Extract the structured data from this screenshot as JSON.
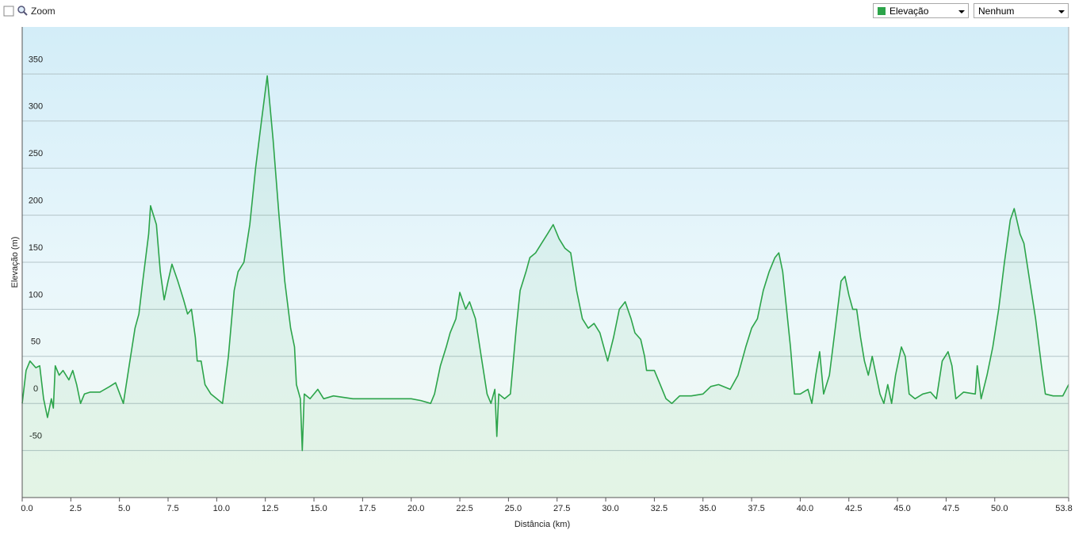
{
  "toolbar": {
    "zoom_label": "Zoom",
    "secondary_select": "Nenhum"
  },
  "chart_data": {
    "type": "line",
    "xlabel": "Distância  (km)",
    "ylabel": "Elevação (m)",
    "xlim": [
      0,
      53.8
    ],
    "ylim": [
      -100,
      400
    ],
    "xticks": [
      {
        "value": 0,
        "label": "0.0"
      },
      2.5,
      {
        "value": 5,
        "label": "5.0"
      },
      7.5,
      {
        "value": 10,
        "label": "10.0"
      },
      12.5,
      {
        "value": 15,
        "label": "15.0"
      },
      17.5,
      {
        "value": 20,
        "label": "20.0"
      },
      22.5,
      {
        "value": 25,
        "label": "25.0"
      },
      27.5,
      {
        "value": 30,
        "label": "30.0"
      },
      32.5,
      {
        "value": 35,
        "label": "35.0"
      },
      37.5,
      {
        "value": 40,
        "label": "40.0"
      },
      42.5,
      {
        "value": 45,
        "label": "45.0"
      },
      47.5,
      {
        "value": 50,
        "label": "50.0"
      },
      53.8
    ],
    "yticks": [
      -50,
      0,
      50,
      100,
      150,
      200,
      250,
      300,
      350
    ],
    "grid": true,
    "x": [
      0,
      0.2,
      0.4,
      0.7,
      0.9,
      1.1,
      1.3,
      1.5,
      1.6,
      1.7,
      1.9,
      2.1,
      2.4,
      2.6,
      2.8,
      3.0,
      3.2,
      3.5,
      4.0,
      4.5,
      4.8,
      5.2,
      5.5,
      5.8,
      6.0,
      6.2,
      6.5,
      6.6,
      6.9,
      7.1,
      7.3,
      7.5,
      7.7,
      8.0,
      8.3,
      8.5,
      8.7,
      8.9,
      9.0,
      9.2,
      9.4,
      9.7,
      10.0,
      10.3,
      10.6,
      10.9,
      11.1,
      11.4,
      11.7,
      12.0,
      12.3,
      12.6,
      12.9,
      13.2,
      13.5,
      13.8,
      14.0,
      14.1,
      14.3,
      14.4,
      14.5,
      14.8,
      15.2,
      15.5,
      16,
      17,
      18,
      19,
      20,
      20.5,
      21,
      21.2,
      21.5,
      21.8,
      22.0,
      22.3,
      22.5,
      22.8,
      23.0,
      23.3,
      23.6,
      23.9,
      24.1,
      24.3,
      24.4,
      24.5,
      24.8,
      25.1,
      25.4,
      25.6,
      25.9,
      26.1,
      26.4,
      26.7,
      27.0,
      27.3,
      27.6,
      27.9,
      28.2,
      28.5,
      28.8,
      29.1,
      29.4,
      29.7,
      29.9,
      30.1,
      30.4,
      30.7,
      31.0,
      31.3,
      31.5,
      31.8,
      32.0,
      32.1,
      32.5,
      32.8,
      33.1,
      33.4,
      33.8,
      34.4,
      35.0,
      35.4,
      35.8,
      36.4,
      36.8,
      37.2,
      37.5,
      37.8,
      38.1,
      38.4,
      38.7,
      38.9,
      39.1,
      39.3,
      39.5,
      39.7,
      40.0,
      40.4,
      40.6,
      40.8,
      41.0,
      41.2,
      41.5,
      41.8,
      42.1,
      42.3,
      42.5,
      42.7,
      42.9,
      43.1,
      43.3,
      43.5,
      43.7,
      43.9,
      44.1,
      44.3,
      44.5,
      44.7,
      44.9,
      45.2,
      45.4,
      45.6,
      45.9,
      46.3,
      46.7,
      47.0,
      47.3,
      47.6,
      47.8,
      48.0,
      48.4,
      49.0,
      49.1,
      49.3,
      49.6,
      49.9,
      50.2,
      50.5,
      50.8,
      51.0,
      51.3,
      51.5,
      51.8,
      52.1,
      52.4,
      52.6,
      53.0,
      53.5,
      53.8
    ],
    "series": [
      {
        "name": "Elevação",
        "color": "#2ca44a",
        "values": [
          0,
          35,
          45,
          38,
          40,
          5,
          -15,
          5,
          -5,
          40,
          30,
          35,
          25,
          35,
          20,
          0,
          10,
          12,
          12,
          18,
          22,
          0,
          40,
          80,
          95,
          130,
          180,
          210,
          190,
          140,
          110,
          130,
          148,
          130,
          110,
          95,
          100,
          70,
          45,
          45,
          20,
          10,
          5,
          0,
          50,
          120,
          140,
          150,
          190,
          250,
          300,
          348,
          280,
          200,
          130,
          80,
          60,
          20,
          5,
          -50,
          10,
          5,
          15,
          5,
          8,
          5,
          5,
          5,
          5,
          3,
          0,
          10,
          40,
          60,
          75,
          90,
          118,
          100,
          108,
          90,
          50,
          10,
          0,
          15,
          -35,
          10,
          5,
          10,
          80,
          120,
          140,
          155,
          160,
          170,
          180,
          190,
          175,
          165,
          160,
          120,
          90,
          80,
          85,
          75,
          60,
          45,
          70,
          100,
          108,
          90,
          75,
          68,
          50,
          35,
          35,
          20,
          5,
          0,
          8,
          8,
          10,
          18,
          20,
          15,
          30,
          60,
          80,
          90,
          120,
          140,
          155,
          160,
          140,
          100,
          60,
          10,
          10,
          15,
          0,
          30,
          55,
          10,
          30,
          80,
          130,
          135,
          115,
          100,
          100,
          70,
          45,
          30,
          50,
          30,
          10,
          0,
          20,
          0,
          30,
          60,
          50,
          10,
          5,
          10,
          12,
          5,
          45,
          55,
          40,
          5,
          12,
          10,
          40,
          5,
          30,
          60,
          100,
          150,
          195,
          207,
          180,
          170,
          130,
          90,
          40,
          10,
          8,
          8,
          20
        ]
      }
    ]
  }
}
